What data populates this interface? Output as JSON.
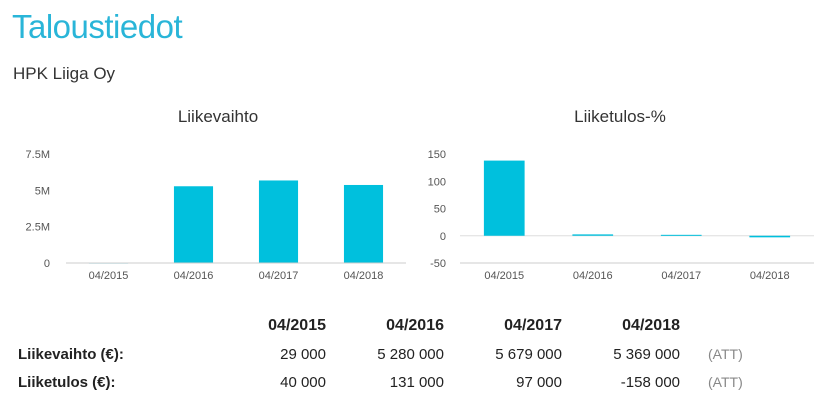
{
  "page": {
    "title": "Taloustiedot",
    "company": "HPK Liiga Oy"
  },
  "chart_data": [
    {
      "type": "bar",
      "title": "Liikevaihto",
      "categories": [
        "04/2015",
        "04/2016",
        "04/2017",
        "04/2018"
      ],
      "values": [
        29000,
        5280000,
        5679000,
        5369000
      ],
      "yticks": [
        0,
        2500000,
        5000000,
        7500000
      ],
      "ytick_labels": [
        "0",
        "2.5M",
        "5M",
        "7.5M"
      ],
      "ylim": [
        0,
        7500000
      ],
      "color": "#00c0dd"
    },
    {
      "type": "bar",
      "title": "Liiketulos-%",
      "categories": [
        "04/2015",
        "04/2016",
        "04/2017",
        "04/2018"
      ],
      "values": [
        137.9,
        2.5,
        1.7,
        -2.9
      ],
      "yticks": [
        -50,
        0,
        50,
        100,
        150
      ],
      "ytick_labels": [
        "-50",
        "0",
        "50",
        "100",
        "150"
      ],
      "ylim": [
        -50,
        150
      ],
      "color": "#00c0dd"
    }
  ],
  "table": {
    "headers": [
      "04/2015",
      "04/2016",
      "04/2017",
      "04/2018"
    ],
    "rows": [
      {
        "label": "Liikevaihto (€):",
        "values": [
          "29 000",
          "5 280 000",
          "5 679 000",
          "5 369 000"
        ],
        "note": "(ATT)"
      },
      {
        "label": "Liiketulos (€):",
        "values": [
          "40 000",
          "131 000",
          "97 000",
          "-158 000"
        ],
        "note": "(ATT)"
      }
    ]
  }
}
